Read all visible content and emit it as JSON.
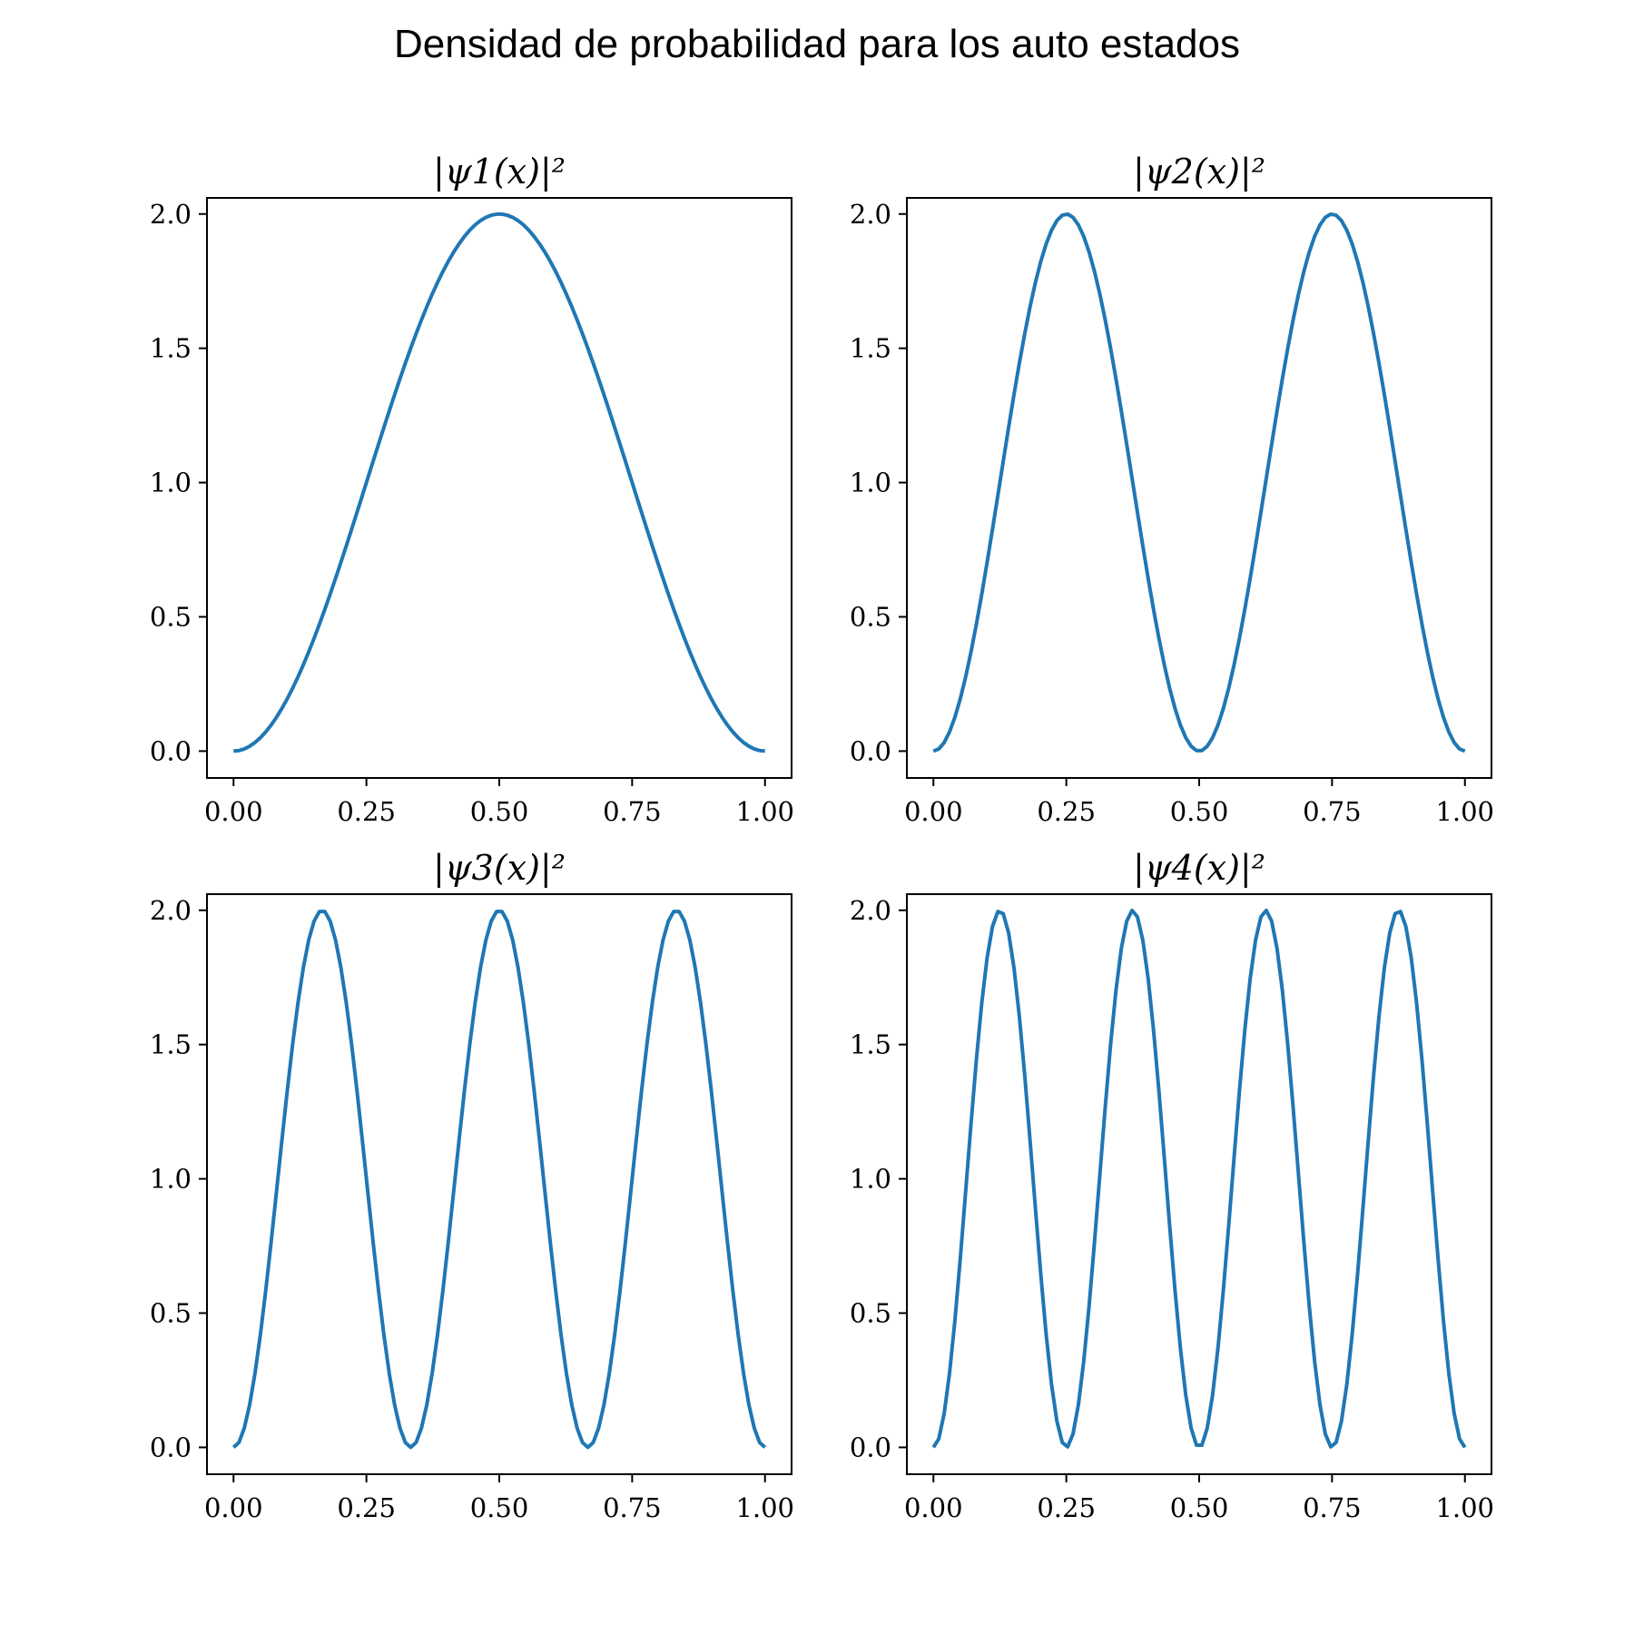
{
  "figure": {
    "suptitle": "Densidad de probabilidad para los auto estados"
  },
  "chart_data": [
    {
      "type": "line",
      "title": "|ψ1(x)|²",
      "xlabel": "",
      "ylabel": "",
      "function": "2*sin^2(1*pi*x)",
      "x_range": [
        0,
        1
      ],
      "xlim": [
        -0.05,
        1.05
      ],
      "ylim": [
        -0.1,
        2.06
      ],
      "xticks": [
        "0.00",
        "0.25",
        "0.50",
        "0.75",
        "1.00"
      ],
      "yticks": [
        "0.0",
        "0.5",
        "1.0",
        "1.5",
        "2.0"
      ],
      "grid": false,
      "color": "#1f77b4",
      "peaks": [
        {
          "x": 0.5,
          "y": 1.96
        }
      ]
    },
    {
      "type": "line",
      "title": "|ψ2(x)|²",
      "xlabel": "",
      "ylabel": "",
      "function": "2*sin^2(2*pi*x)",
      "x_range": [
        0,
        1
      ],
      "xlim": [
        -0.05,
        1.05
      ],
      "ylim": [
        -0.1,
        2.06
      ],
      "xticks": [
        "0.00",
        "0.25",
        "0.50",
        "0.75",
        "1.00"
      ],
      "yticks": [
        "0.0",
        "0.5",
        "1.0",
        "1.5",
        "2.0"
      ],
      "grid": false,
      "color": "#1f77b4",
      "peaks": [
        {
          "x": 0.25,
          "y": 1.96
        },
        {
          "x": 0.75,
          "y": 1.96
        }
      ]
    },
    {
      "type": "line",
      "title": "|ψ3(x)|²",
      "xlabel": "",
      "ylabel": "",
      "function": "2*sin^2(3*pi*x)",
      "x_range": [
        0,
        1
      ],
      "xlim": [
        -0.05,
        1.05
      ],
      "ylim": [
        -0.1,
        2.06
      ],
      "xticks": [
        "0.00",
        "0.25",
        "0.50",
        "0.75",
        "1.00"
      ],
      "yticks": [
        "0.0",
        "0.5",
        "1.0",
        "1.5",
        "2.0"
      ],
      "grid": false,
      "color": "#1f77b4",
      "peaks": [
        {
          "x": 0.167,
          "y": 1.96
        },
        {
          "x": 0.5,
          "y": 1.96
        },
        {
          "x": 0.833,
          "y": 1.96
        }
      ]
    },
    {
      "type": "line",
      "title": "|ψ4(x)|²",
      "xlabel": "",
      "ylabel": "",
      "function": "2*sin^2(4*pi*x)",
      "x_range": [
        0,
        1
      ],
      "xlim": [
        -0.05,
        1.05
      ],
      "ylim": [
        -0.1,
        2.06
      ],
      "xticks": [
        "0.00",
        "0.25",
        "0.50",
        "0.75",
        "1.00"
      ],
      "yticks": [
        "0.0",
        "0.5",
        "1.0",
        "1.5",
        "2.0"
      ],
      "grid": false,
      "color": "#1f77b4",
      "peaks": [
        {
          "x": 0.125,
          "y": 1.96
        },
        {
          "x": 0.375,
          "y": 1.96
        },
        {
          "x": 0.625,
          "y": 1.96
        },
        {
          "x": 0.875,
          "y": 1.96
        }
      ]
    }
  ]
}
